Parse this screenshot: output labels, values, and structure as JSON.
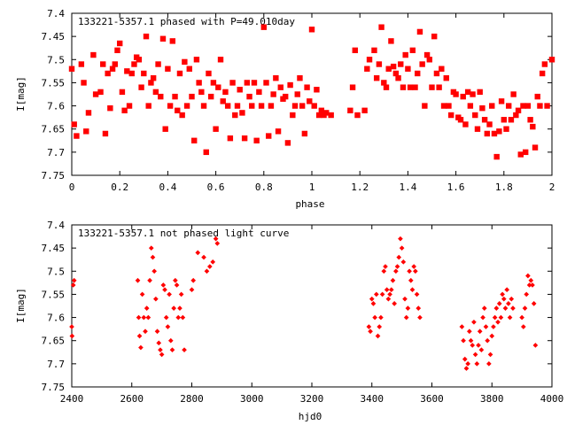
{
  "chart_data": [
    {
      "type": "scatter",
      "title": "133221-5357.1 phased with P=49.010day",
      "xlabel": "phase",
      "ylabel": "I[mag]",
      "xlim": [
        0,
        2
      ],
      "ylim": [
        7.75,
        7.4
      ],
      "y_inverted": true,
      "grid": false,
      "marker_color": "#ff0000",
      "x_ticks": [
        "0",
        "0.2",
        "0.4",
        "0.6",
        "0.8",
        "1",
        "1.2",
        "1.4",
        "1.6",
        "1.8",
        "2"
      ],
      "x_tick_values": [
        0,
        0.2,
        0.4,
        0.6,
        0.8,
        1.0,
        1.2,
        1.4,
        1.6,
        1.8,
        2.0
      ],
      "y_ticks": [
        "7.4",
        "7.45",
        "7.5",
        "7.55",
        "7.6",
        "7.65",
        "7.7",
        "7.75"
      ],
      "y_tick_values": [
        7.4,
        7.45,
        7.5,
        7.55,
        7.6,
        7.65,
        7.7,
        7.75
      ],
      "points": [
        [
          0.0,
          7.52
        ],
        [
          0.01,
          7.64
        ],
        [
          0.02,
          7.665
        ],
        [
          0.04,
          7.51
        ],
        [
          0.05,
          7.55
        ],
        [
          0.06,
          7.655
        ],
        [
          0.07,
          7.615
        ],
        [
          0.09,
          7.49
        ],
        [
          0.1,
          7.575
        ],
        [
          0.12,
          7.57
        ],
        [
          0.13,
          7.51
        ],
        [
          0.14,
          7.66
        ],
        [
          0.15,
          7.53
        ],
        [
          0.16,
          7.605
        ],
        [
          0.17,
          7.52
        ],
        [
          0.18,
          7.51
        ],
        [
          0.19,
          7.48
        ],
        [
          0.2,
          7.465
        ],
        [
          0.21,
          7.57
        ],
        [
          0.22,
          7.61
        ],
        [
          0.23,
          7.525
        ],
        [
          0.24,
          7.6
        ],
        [
          0.25,
          7.53
        ],
        [
          0.26,
          7.51
        ],
        [
          0.27,
          7.495
        ],
        [
          0.28,
          7.5
        ],
        [
          0.29,
          7.56
        ],
        [
          0.3,
          7.53
        ],
        [
          0.31,
          7.45
        ],
        [
          0.32,
          7.6
        ],
        [
          0.33,
          7.55
        ],
        [
          0.34,
          7.54
        ],
        [
          0.35,
          7.57
        ],
        [
          0.36,
          7.51
        ],
        [
          0.37,
          7.58
        ],
        [
          0.38,
          7.455
        ],
        [
          0.39,
          7.65
        ],
        [
          0.4,
          7.52
        ],
        [
          0.41,
          7.6
        ],
        [
          0.42,
          7.46
        ],
        [
          0.43,
          7.58
        ],
        [
          0.44,
          7.61
        ],
        [
          0.45,
          7.53
        ],
        [
          0.46,
          7.62
        ],
        [
          0.47,
          7.505
        ],
        [
          0.48,
          7.6
        ],
        [
          0.49,
          7.52
        ],
        [
          0.5,
          7.58
        ],
        [
          0.51,
          7.675
        ],
        [
          0.52,
          7.5
        ],
        [
          0.53,
          7.55
        ],
        [
          0.54,
          7.57
        ],
        [
          0.55,
          7.6
        ],
        [
          0.56,
          7.7
        ],
        [
          0.57,
          7.53
        ],
        [
          0.58,
          7.58
        ],
        [
          0.59,
          7.55
        ],
        [
          0.6,
          7.65
        ],
        [
          0.61,
          7.56
        ],
        [
          0.62,
          7.5
        ],
        [
          0.63,
          7.59
        ],
        [
          0.64,
          7.57
        ],
        [
          0.65,
          7.6
        ],
        [
          0.66,
          7.67
        ],
        [
          0.67,
          7.55
        ],
        [
          0.68,
          7.62
        ],
        [
          0.69,
          7.6
        ],
        [
          0.7,
          7.565
        ],
        [
          0.71,
          7.615
        ],
        [
          0.72,
          7.67
        ],
        [
          0.73,
          7.55
        ],
        [
          0.74,
          7.58
        ],
        [
          0.75,
          7.6
        ],
        [
          0.76,
          7.55
        ],
        [
          0.77,
          7.675
        ],
        [
          0.78,
          7.57
        ],
        [
          0.79,
          7.6
        ],
        [
          0.8,
          7.43
        ],
        [
          0.81,
          7.55
        ],
        [
          0.82,
          7.665
        ],
        [
          0.83,
          7.6
        ],
        [
          0.84,
          7.575
        ],
        [
          0.85,
          7.54
        ],
        [
          0.86,
          7.655
        ],
        [
          0.87,
          7.56
        ],
        [
          0.88,
          7.585
        ],
        [
          0.89,
          7.58
        ],
        [
          0.9,
          7.68
        ],
        [
          0.91,
          7.555
        ],
        [
          0.92,
          7.62
        ],
        [
          0.93,
          7.6
        ],
        [
          0.94,
          7.575
        ],
        [
          0.95,
          7.54
        ],
        [
          0.96,
          7.6
        ],
        [
          0.97,
          7.66
        ],
        [
          0.98,
          7.56
        ],
        [
          0.99,
          7.59
        ],
        [
          1.0,
          7.435
        ],
        [
          1.01,
          7.6
        ],
        [
          1.02,
          7.565
        ],
        [
          1.03,
          7.62
        ],
        [
          1.04,
          7.61
        ],
        [
          1.05,
          7.62
        ],
        [
          1.06,
          7.615
        ],
        [
          1.08,
          7.62
        ],
        [
          1.16,
          7.61
        ],
        [
          1.17,
          7.56
        ],
        [
          1.18,
          7.48
        ],
        [
          1.19,
          7.62
        ],
        [
          1.22,
          7.61
        ],
        [
          1.23,
          7.52
        ],
        [
          1.24,
          7.5
        ],
        [
          1.26,
          7.48
        ],
        [
          1.27,
          7.54
        ],
        [
          1.28,
          7.51
        ],
        [
          1.29,
          7.43
        ],
        [
          1.3,
          7.55
        ],
        [
          1.31,
          7.56
        ],
        [
          1.32,
          7.52
        ],
        [
          1.33,
          7.46
        ],
        [
          1.34,
          7.515
        ],
        [
          1.35,
          7.53
        ],
        [
          1.36,
          7.54
        ],
        [
          1.37,
          7.51
        ],
        [
          1.38,
          7.56
        ],
        [
          1.39,
          7.49
        ],
        [
          1.4,
          7.52
        ],
        [
          1.41,
          7.56
        ],
        [
          1.42,
          7.48
        ],
        [
          1.43,
          7.56
        ],
        [
          1.44,
          7.53
        ],
        [
          1.45,
          7.44
        ],
        [
          1.46,
          7.51
        ],
        [
          1.47,
          7.6
        ],
        [
          1.48,
          7.49
        ],
        [
          1.49,
          7.5
        ],
        [
          1.5,
          7.56
        ],
        [
          1.51,
          7.45
        ],
        [
          1.52,
          7.53
        ],
        [
          1.53,
          7.56
        ],
        [
          1.54,
          7.52
        ],
        [
          1.55,
          7.6
        ],
        [
          1.56,
          7.54
        ],
        [
          1.57,
          7.6
        ],
        [
          1.58,
          7.62
        ],
        [
          1.59,
          7.57
        ],
        [
          1.6,
          7.575
        ],
        [
          1.61,
          7.625
        ],
        [
          1.62,
          7.63
        ],
        [
          1.63,
          7.58
        ],
        [
          1.64,
          7.64
        ],
        [
          1.65,
          7.57
        ],
        [
          1.66,
          7.6
        ],
        [
          1.67,
          7.575
        ],
        [
          1.68,
          7.62
        ],
        [
          1.69,
          7.65
        ],
        [
          1.7,
          7.57
        ],
        [
          1.71,
          7.605
        ],
        [
          1.72,
          7.63
        ],
        [
          1.73,
          7.66
        ],
        [
          1.74,
          7.64
        ],
        [
          1.75,
          7.6
        ],
        [
          1.76,
          7.66
        ],
        [
          1.77,
          7.71
        ],
        [
          1.78,
          7.655
        ],
        [
          1.79,
          7.59
        ],
        [
          1.8,
          7.63
        ],
        [
          1.81,
          7.65
        ],
        [
          1.82,
          7.6
        ],
        [
          1.83,
          7.63
        ],
        [
          1.84,
          7.575
        ],
        [
          1.85,
          7.62
        ],
        [
          1.86,
          7.61
        ],
        [
          1.87,
          7.705
        ],
        [
          1.88,
          7.6
        ],
        [
          1.89,
          7.7
        ],
        [
          1.9,
          7.6
        ],
        [
          1.91,
          7.63
        ],
        [
          1.92,
          7.645
        ],
        [
          1.93,
          7.69
        ],
        [
          1.94,
          7.58
        ],
        [
          1.95,
          7.6
        ],
        [
          1.96,
          7.53
        ],
        [
          1.97,
          7.51
        ],
        [
          1.98,
          7.6
        ],
        [
          2.0,
          7.5
        ]
      ]
    },
    {
      "type": "scatter",
      "title": "133221-5357.1 not phased light curve",
      "xlabel": "hjd0",
      "ylabel": "I[mag]",
      "xlim": [
        2400,
        4000
      ],
      "ylim": [
        7.75,
        7.4
      ],
      "y_inverted": true,
      "grid": false,
      "marker_color": "#ff0000",
      "x_ticks": [
        "2400",
        "2600",
        "2800",
        "3000",
        "3200",
        "3400",
        "3600",
        "3800",
        "4000"
      ],
      "x_tick_values": [
        2400,
        2600,
        2800,
        3000,
        3200,
        3400,
        3600,
        3800,
        4000
      ],
      "y_ticks": [
        "7.4",
        "7.45",
        "7.5",
        "7.55",
        "7.6",
        "7.65",
        "7.7",
        "7.75"
      ],
      "y_tick_values": [
        7.4,
        7.45,
        7.5,
        7.55,
        7.6,
        7.65,
        7.7,
        7.75
      ],
      "points": [
        [
          2400,
          7.62
        ],
        [
          2401,
          7.64
        ],
        [
          2405,
          7.53
        ],
        [
          2408,
          7.52
        ],
        [
          2620,
          7.52
        ],
        [
          2623,
          7.6
        ],
        [
          2626,
          7.64
        ],
        [
          2630,
          7.665
        ],
        [
          2635,
          7.55
        ],
        [
          2640,
          7.6
        ],
        [
          2645,
          7.63
        ],
        [
          2650,
          7.58
        ],
        [
          2655,
          7.6
        ],
        [
          2660,
          7.52
        ],
        [
          2665,
          7.45
        ],
        [
          2670,
          7.47
        ],
        [
          2675,
          7.5
        ],
        [
          2680,
          7.56
        ],
        [
          2685,
          7.63
        ],
        [
          2690,
          7.655
        ],
        [
          2695,
          7.67
        ],
        [
          2700,
          7.68
        ],
        [
          2705,
          7.53
        ],
        [
          2710,
          7.54
        ],
        [
          2715,
          7.6
        ],
        [
          2720,
          7.62
        ],
        [
          2725,
          7.55
        ],
        [
          2730,
          7.65
        ],
        [
          2735,
          7.67
        ],
        [
          2740,
          7.58
        ],
        [
          2745,
          7.52
        ],
        [
          2750,
          7.53
        ],
        [
          2755,
          7.6
        ],
        [
          2760,
          7.58
        ],
        [
          2765,
          7.55
        ],
        [
          2770,
          7.6
        ],
        [
          2775,
          7.67
        ],
        [
          2800,
          7.54
        ],
        [
          2805,
          7.52
        ],
        [
          2820,
          7.46
        ],
        [
          2840,
          7.47
        ],
        [
          2850,
          7.5
        ],
        [
          2860,
          7.49
        ],
        [
          2870,
          7.48
        ],
        [
          2880,
          7.43
        ],
        [
          2885,
          7.44
        ],
        [
          3390,
          7.62
        ],
        [
          3395,
          7.63
        ],
        [
          3400,
          7.56
        ],
        [
          3405,
          7.57
        ],
        [
          3410,
          7.6
        ],
        [
          3415,
          7.55
        ],
        [
          3420,
          7.64
        ],
        [
          3425,
          7.62
        ],
        [
          3430,
          7.6
        ],
        [
          3435,
          7.55
        ],
        [
          3440,
          7.5
        ],
        [
          3445,
          7.49
        ],
        [
          3450,
          7.54
        ],
        [
          3455,
          7.56
        ],
        [
          3460,
          7.55
        ],
        [
          3465,
          7.54
        ],
        [
          3470,
          7.52
        ],
        [
          3475,
          7.57
        ],
        [
          3480,
          7.5
        ],
        [
          3485,
          7.49
        ],
        [
          3490,
          7.47
        ],
        [
          3495,
          7.43
        ],
        [
          3500,
          7.45
        ],
        [
          3505,
          7.48
        ],
        [
          3510,
          7.56
        ],
        [
          3515,
          7.6
        ],
        [
          3520,
          7.58
        ],
        [
          3525,
          7.5
        ],
        [
          3530,
          7.52
        ],
        [
          3535,
          7.54
        ],
        [
          3540,
          7.49
        ],
        [
          3545,
          7.5
        ],
        [
          3550,
          7.55
        ],
        [
          3555,
          7.58
        ],
        [
          3560,
          7.6
        ],
        [
          3700,
          7.62
        ],
        [
          3705,
          7.65
        ],
        [
          3710,
          7.69
        ],
        [
          3715,
          7.71
        ],
        [
          3720,
          7.7
        ],
        [
          3725,
          7.63
        ],
        [
          3730,
          7.65
        ],
        [
          3735,
          7.66
        ],
        [
          3740,
          7.61
        ],
        [
          3745,
          7.68
        ],
        [
          3750,
          7.7
        ],
        [
          3755,
          7.66
        ],
        [
          3760,
          7.63
        ],
        [
          3765,
          7.67
        ],
        [
          3770,
          7.6
        ],
        [
          3775,
          7.58
        ],
        [
          3780,
          7.62
        ],
        [
          3785,
          7.65
        ],
        [
          3790,
          7.7
        ],
        [
          3795,
          7.68
        ],
        [
          3800,
          7.64
        ],
        [
          3805,
          7.62
        ],
        [
          3810,
          7.6
        ],
        [
          3815,
          7.58
        ],
        [
          3820,
          7.61
        ],
        [
          3825,
          7.57
        ],
        [
          3830,
          7.6
        ],
        [
          3835,
          7.55
        ],
        [
          3840,
          7.56
        ],
        [
          3845,
          7.58
        ],
        [
          3850,
          7.54
        ],
        [
          3855,
          7.57
        ],
        [
          3860,
          7.6
        ],
        [
          3865,
          7.56
        ],
        [
          3870,
          7.58
        ],
        [
          3900,
          7.6
        ],
        [
          3905,
          7.62
        ],
        [
          3910,
          7.58
        ],
        [
          3915,
          7.55
        ],
        [
          3920,
          7.51
        ],
        [
          3925,
          7.53
        ],
        [
          3930,
          7.52
        ],
        [
          3935,
          7.53
        ],
        [
          3940,
          7.57
        ],
        [
          3945,
          7.66
        ]
      ]
    }
  ]
}
